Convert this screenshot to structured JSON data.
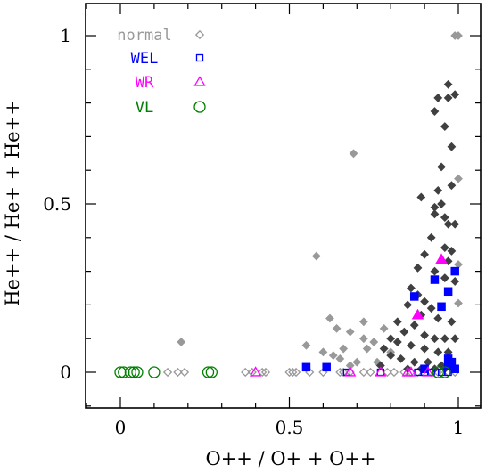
{
  "chart_data": {
    "type": "scatter",
    "title": "",
    "xlabel": "O++ / O+ + O++",
    "ylabel": "He++ / He+ + He++",
    "xlim": [
      -0.1,
      1.08
    ],
    "ylim": [
      -0.1,
      1.08
    ],
    "x_ticks": [
      0,
      0.5,
      1
    ],
    "x_tick_labels": [
      "0",
      "0.5",
      "1"
    ],
    "y_ticks": [
      0,
      0.5,
      1
    ],
    "y_tick_labels": [
      "0",
      "0.5",
      "1"
    ],
    "legend": {
      "placement": "top-left"
    },
    "series": [
      {
        "name": "normal",
        "marker": "diamond",
        "color": "#999999",
        "points": [
          [
            0.18,
            0.09
          ],
          [
            0.58,
            0.345
          ],
          [
            0.69,
            0.65
          ],
          [
            0.55,
            0.08
          ],
          [
            0.6,
            0.06
          ],
          [
            0.63,
            0.05
          ],
          [
            0.65,
            0.04
          ],
          [
            0.66,
            0.07
          ],
          [
            0.62,
            0.16
          ],
          [
            0.64,
            0.13
          ],
          [
            0.68,
            0.12
          ],
          [
            0.72,
            0.15
          ],
          [
            0.72,
            0.1
          ],
          [
            0.73,
            0.07
          ],
          [
            0.75,
            0.09
          ],
          [
            0.78,
            0.13
          ],
          [
            0.8,
            0.06
          ],
          [
            0.7,
            0.03
          ],
          [
            0.68,
            0.02
          ],
          [
            0.76,
            0.03
          ],
          [
            0.14,
            0
          ],
          [
            0.17,
            0
          ],
          [
            0.19,
            0
          ],
          [
            0.37,
            0
          ],
          [
            0.39,
            0
          ],
          [
            0.42,
            0
          ],
          [
            0.43,
            0
          ],
          [
            0.5,
            0
          ],
          [
            0.51,
            0
          ],
          [
            0.52,
            0
          ],
          [
            0.56,
            0
          ],
          [
            0.6,
            0
          ],
          [
            0.65,
            0
          ],
          [
            0.66,
            0
          ],
          [
            0.68,
            0
          ],
          [
            0.72,
            0
          ],
          [
            0.74,
            0
          ],
          [
            0.79,
            0
          ],
          [
            0.81,
            0
          ],
          [
            0.84,
            0
          ],
          [
            0.86,
            0
          ],
          [
            0.88,
            0
          ],
          [
            0.92,
            0
          ],
          [
            0.94,
            0
          ],
          [
            0.97,
            0
          ],
          [
            0.99,
            0
          ],
          [
            0.99,
            1.0
          ],
          [
            1.0,
            1.0
          ],
          [
            1.0,
            0.575
          ],
          [
            1.0,
            0.32
          ],
          [
            1.0,
            0.205
          ]
        ]
      },
      {
        "name": "",
        "marker": "diamond",
        "color": "#404040",
        "points": [
          [
            0.97,
            0.855
          ],
          [
            0.99,
            0.825
          ],
          [
            0.97,
            0.815
          ],
          [
            0.94,
            0.815
          ],
          [
            0.93,
            0.775
          ],
          [
            0.96,
            0.73
          ],
          [
            0.98,
            0.67
          ],
          [
            0.95,
            0.61
          ],
          [
            0.98,
            0.555
          ],
          [
            0.89,
            0.52
          ],
          [
            0.94,
            0.54
          ],
          [
            0.93,
            0.49
          ],
          [
            0.95,
            0.5
          ],
          [
            0.96,
            0.46
          ],
          [
            0.93,
            0.47
          ],
          [
            0.97,
            0.44
          ],
          [
            0.99,
            0.44
          ],
          [
            0.92,
            0.4
          ],
          [
            0.96,
            0.37
          ],
          [
            0.98,
            0.36
          ],
          [
            0.97,
            0.33
          ],
          [
            0.9,
            0.35
          ],
          [
            0.93,
            0.3
          ],
          [
            0.88,
            0.31
          ],
          [
            0.96,
            0.28
          ],
          [
            0.99,
            0.27
          ],
          [
            0.86,
            0.25
          ],
          [
            0.88,
            0.23
          ],
          [
            0.9,
            0.21
          ],
          [
            0.92,
            0.19
          ],
          [
            0.85,
            0.2
          ],
          [
            0.89,
            0.17
          ],
          [
            0.94,
            0.16
          ],
          [
            0.98,
            0.15
          ],
          [
            0.87,
            0.14
          ],
          [
            0.82,
            0.15
          ],
          [
            0.84,
            0.12
          ],
          [
            0.9,
            0.11
          ],
          [
            0.93,
            0.1
          ],
          [
            0.96,
            0.1
          ],
          [
            0.99,
            0.1
          ],
          [
            0.8,
            0.1
          ],
          [
            0.82,
            0.09
          ],
          [
            0.86,
            0.08
          ],
          [
            0.9,
            0.07
          ],
          [
            0.94,
            0.06
          ],
          [
            0.97,
            0.06
          ],
          [
            0.78,
            0.07
          ],
          [
            0.8,
            0.05
          ],
          [
            0.83,
            0.04
          ],
          [
            0.87,
            0.03
          ],
          [
            0.91,
            0.03
          ],
          [
            0.95,
            0.02
          ],
          [
            0.98,
            0.02
          ],
          [
            0.85,
            0.01
          ],
          [
            0.89,
            0.01
          ],
          [
            0.93,
            0.01
          ],
          [
            0.96,
            0.01
          ],
          [
            0.99,
            0.01
          ],
          [
            0.77,
            0.02
          ]
        ]
      },
      {
        "name": "WEL",
        "marker": "square",
        "color": "#0000ff",
        "points": [
          [
            0.87,
            0.225
          ],
          [
            0.93,
            0.275
          ],
          [
            0.99,
            0.3
          ],
          [
            0.97,
            0.24
          ],
          [
            0.95,
            0.195
          ],
          [
            0.97,
            0.04
          ],
          [
            0.98,
            0.03
          ],
          [
            0.97,
            0.02
          ],
          [
            0.99,
            0.01
          ],
          [
            0.9,
            0.01
          ],
          [
            0.55,
            0.015
          ],
          [
            0.61,
            0.015
          ],
          [
            0.67,
            0
          ],
          [
            0.77,
            0
          ],
          [
            0.88,
            0
          ],
          [
            0.9,
            0
          ],
          [
            0.92,
            0
          ],
          [
            0.95,
            0
          ],
          [
            0.97,
            0
          ]
        ]
      },
      {
        "name": "WR",
        "marker": "triangle",
        "color": "#ff00ff",
        "points": [
          [
            0.95,
            0.335
          ],
          [
            0.88,
            0.17
          ],
          [
            0.4,
            0
          ],
          [
            0.68,
            0
          ],
          [
            0.77,
            0
          ],
          [
            0.85,
            0
          ],
          [
            0.86,
            0
          ],
          [
            0.91,
            0
          ]
        ]
      },
      {
        "name": "VL",
        "marker": "circle",
        "color": "#008000",
        "points": [
          [
            0,
            0
          ],
          [
            0.01,
            0
          ],
          [
            0.03,
            0
          ],
          [
            0.04,
            0
          ],
          [
            0.05,
            0
          ],
          [
            0.1,
            0
          ],
          [
            0.26,
            0
          ],
          [
            0.27,
            0
          ],
          [
            0.94,
            0
          ],
          [
            0.96,
            0
          ]
        ]
      }
    ]
  }
}
